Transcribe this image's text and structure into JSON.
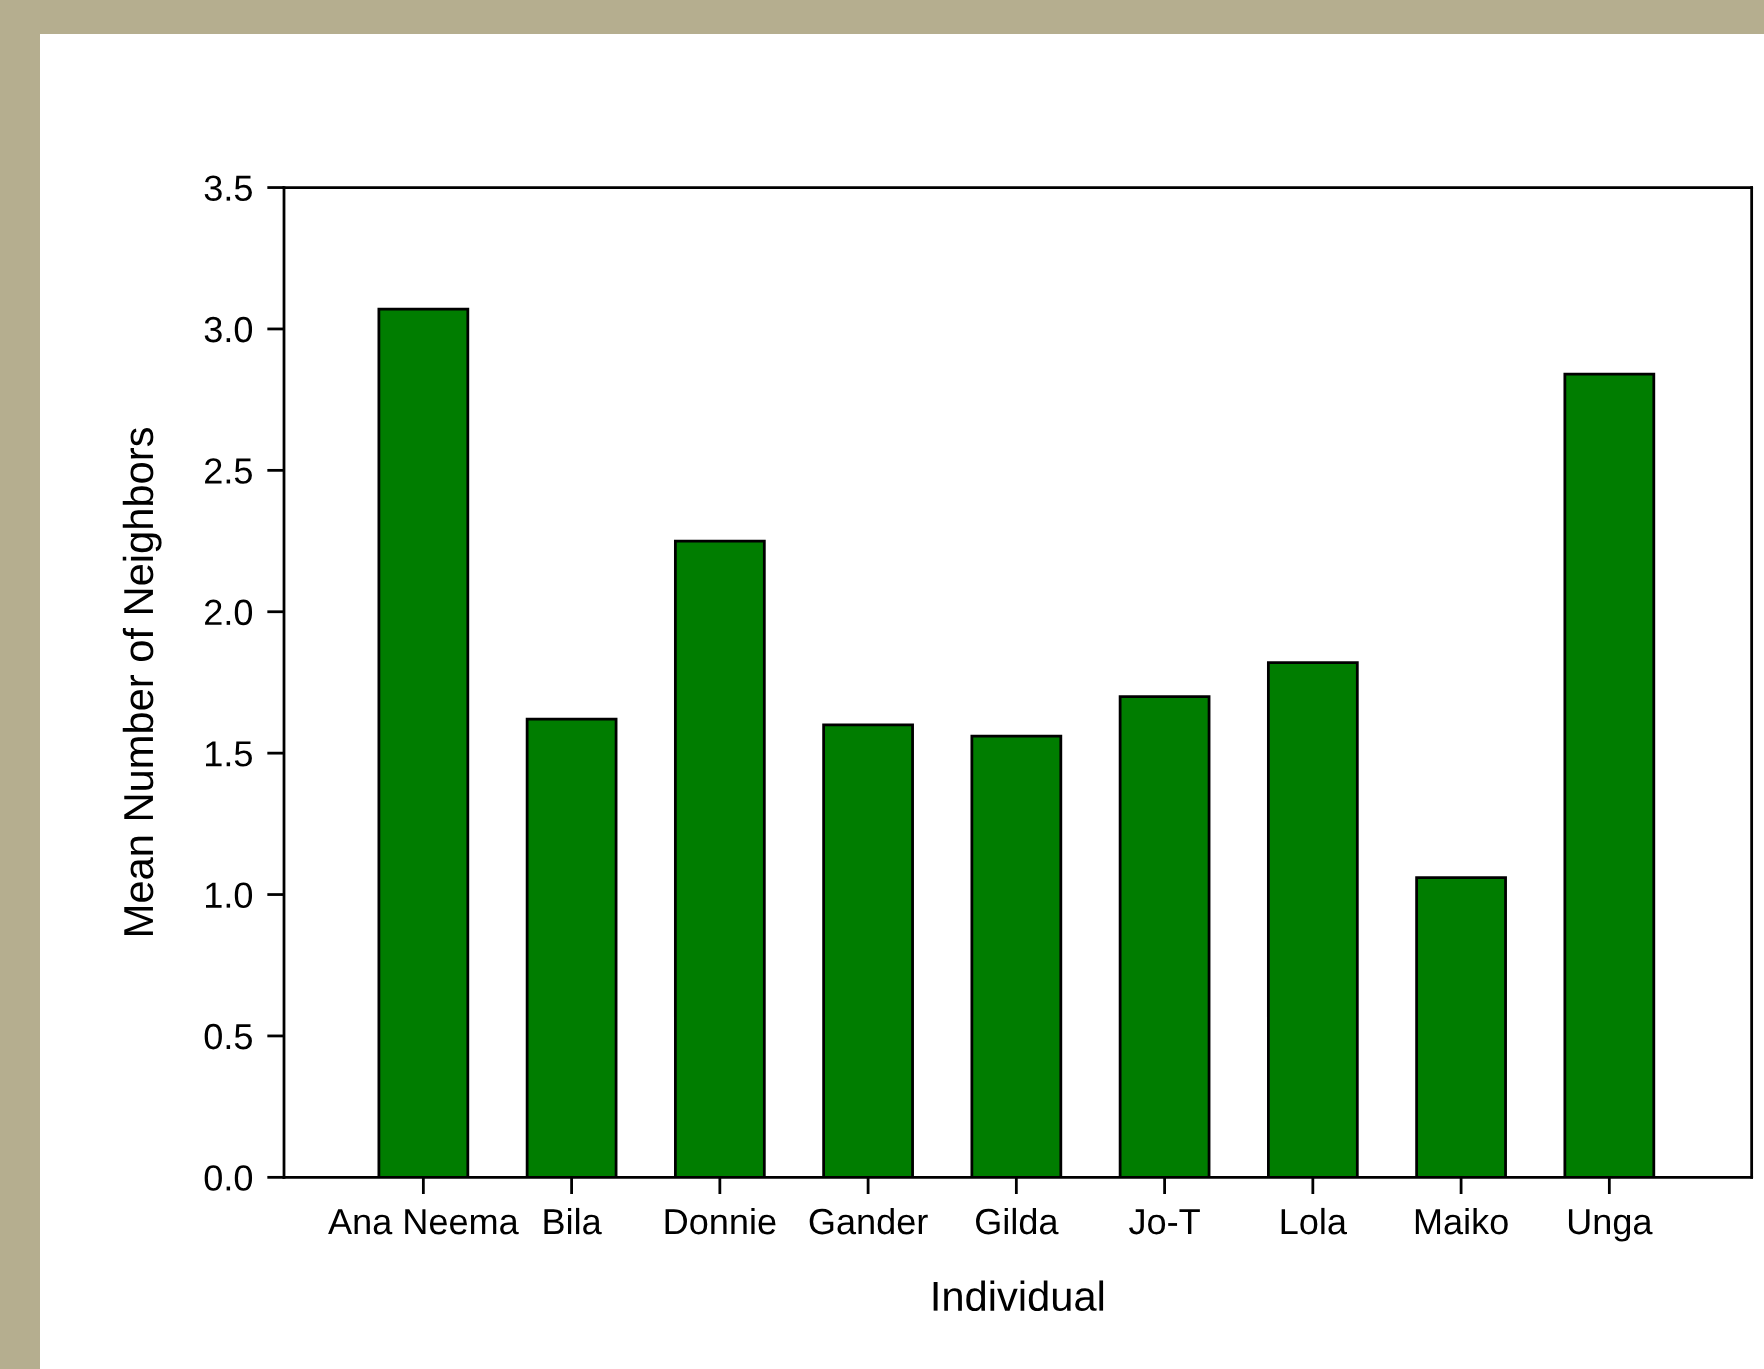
{
  "chart_data": {
    "type": "bar",
    "xlabel": "Individual",
    "ylabel": "Mean Number of Neighbors",
    "categories": [
      "Ana Neema",
      "Bila",
      "Donnie",
      "Gander",
      "Gilda",
      "Jo-T",
      "Lola",
      "Maiko",
      "Unga"
    ],
    "values": [
      3.07,
      1.62,
      2.25,
      1.6,
      1.56,
      1.7,
      1.82,
      1.06,
      2.84
    ],
    "color": "#007d00",
    "ylim": [
      0,
      3.5
    ],
    "yticks": [
      {
        "value": 0,
        "label": "0.0"
      },
      {
        "value": 0.5,
        "label": "0.5"
      },
      {
        "value": 1,
        "label": "1.0"
      },
      {
        "value": 1.5,
        "label": "1.5"
      },
      {
        "value": 2,
        "label": "2.0"
      },
      {
        "value": 2.5,
        "label": "2.5"
      },
      {
        "value": 3,
        "label": "3.0"
      },
      {
        "value": 3.5,
        "label": "3.5"
      }
    ],
    "grid": false,
    "legend": false
  }
}
